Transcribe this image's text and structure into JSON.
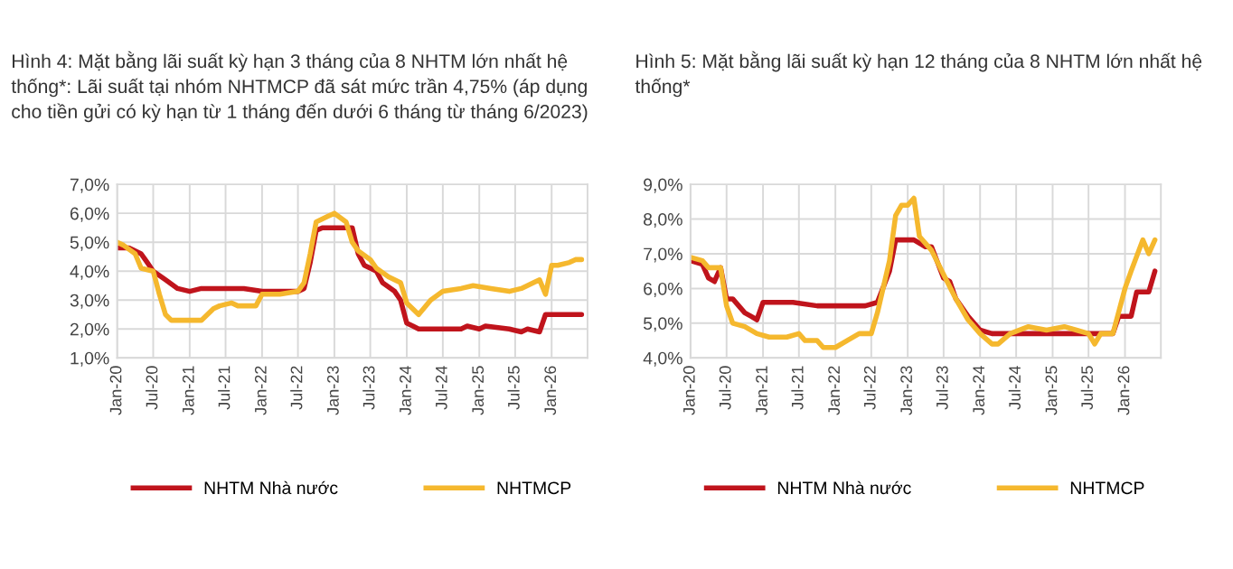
{
  "chart_data": [
    {
      "type": "line",
      "title": "Hình 4: Mặt bằng lãi suất kỳ hạn 3 tháng của 8 NHTM lớn nhất hệ thống*: Lãi suất tại nhóm NHTMCP đã sát mức trần 4,75% (áp dụng cho tiền gửi có kỳ hạn từ 1 tháng đến dưới 6 tháng từ tháng 6/2023)",
      "series": [
        {
          "name": "NHTM Nhà nước",
          "color": "#c0141c",
          "x": [
            "2020-01",
            "2020-03",
            "2020-05",
            "2020-06",
            "2020-07",
            "2020-09",
            "2020-11",
            "2021-01",
            "2021-03",
            "2021-10",
            "2022-01",
            "2022-07",
            "2022-08",
            "2022-09",
            "2022-10",
            "2022-11",
            "2023-04",
            "2023-05",
            "2023-06",
            "2023-08",
            "2023-09",
            "2023-11",
            "2023-12",
            "2024-01",
            "2024-02",
            "2024-03",
            "2024-10",
            "2024-11",
            "2025-01",
            "2025-02",
            "2025-06",
            "2025-08",
            "2025-09",
            "2025-11",
            "2025-12",
            "2026-01",
            "2026-06"
          ],
          "values": [
            4.8,
            4.8,
            4.6,
            4.3,
            4.0,
            3.7,
            3.4,
            3.3,
            3.4,
            3.4,
            3.3,
            3.3,
            3.4,
            4.3,
            5.4,
            5.5,
            5.5,
            4.6,
            4.2,
            4.0,
            3.6,
            3.3,
            3.0,
            2.2,
            2.1,
            2.0,
            2.0,
            2.1,
            2.0,
            2.1,
            2.0,
            1.9,
            2.0,
            1.9,
            2.5,
            2.5,
            2.5
          ]
        },
        {
          "name": "NHTMCP",
          "color": "#f5b82e",
          "x": [
            "2020-01",
            "2020-02",
            "2020-04",
            "2020-05",
            "2020-07",
            "2020-08",
            "2020-09",
            "2020-10",
            "2021-03",
            "2021-05",
            "2021-06",
            "2021-08",
            "2021-09",
            "2021-11",
            "2021-12",
            "2022-01",
            "2022-04",
            "2022-07",
            "2022-08",
            "2022-09",
            "2022-10",
            "2022-12",
            "2023-01",
            "2023-03",
            "2023-04",
            "2023-05",
            "2023-07",
            "2023-08",
            "2023-10",
            "2023-12",
            "2024-01",
            "2024-03",
            "2024-05",
            "2024-07",
            "2024-10",
            "2024-12",
            "2025-03",
            "2025-06",
            "2025-08",
            "2025-10",
            "2025-11",
            "2025-12",
            "2026-01",
            "2026-02",
            "2026-04",
            "2026-05",
            "2026-06"
          ],
          "values": [
            5.0,
            4.9,
            4.6,
            4.1,
            4.0,
            3.2,
            2.5,
            2.3,
            2.3,
            2.7,
            2.8,
            2.9,
            2.8,
            2.8,
            2.8,
            3.2,
            3.2,
            3.3,
            3.6,
            4.6,
            5.7,
            5.9,
            6.0,
            5.7,
            5.0,
            4.7,
            4.4,
            4.1,
            3.8,
            3.6,
            2.9,
            2.5,
            3.0,
            3.3,
            3.4,
            3.5,
            3.4,
            3.3,
            3.4,
            3.6,
            3.7,
            3.2,
            4.2,
            4.2,
            4.3,
            4.4,
            4.4
          ]
        }
      ],
      "xlim": [
        "2020-01",
        "2026-07"
      ],
      "xticks": [
        {
          "value": "2020-01",
          "label": "Jan-20"
        },
        {
          "value": "2020-07",
          "label": "Jul-20"
        },
        {
          "value": "2021-01",
          "label": "Jan-21"
        },
        {
          "value": "2021-07",
          "label": "Jul-21"
        },
        {
          "value": "2022-01",
          "label": "Jan-22"
        },
        {
          "value": "2022-07",
          "label": "Jul-22"
        },
        {
          "value": "2023-01",
          "label": "Jan-23"
        },
        {
          "value": "2023-07",
          "label": "Jul-23"
        },
        {
          "value": "2024-01",
          "label": "Jan-24"
        },
        {
          "value": "2024-07",
          "label": "Jul-24"
        },
        {
          "value": "2025-01",
          "label": "Jan-25"
        },
        {
          "value": "2025-07",
          "label": "Jul-25"
        },
        {
          "value": "2026-01",
          "label": "Jan-26"
        }
      ],
      "ylim": [
        1,
        7
      ],
      "yticks": [
        {
          "value": 1,
          "label": "1,0%"
        },
        {
          "value": 2,
          "label": "2,0%"
        },
        {
          "value": 3,
          "label": "3,0%"
        },
        {
          "value": 4,
          "label": "4,0%"
        },
        {
          "value": 5,
          "label": "5,0%"
        },
        {
          "value": 6,
          "label": "6,0%"
        },
        {
          "value": 7,
          "label": "7,0%"
        }
      ],
      "grid": true,
      "legend": "bottom"
    },
    {
      "type": "line",
      "title": "Hình 5: Mặt bằng lãi suất kỳ hạn 12 tháng của 8 NHTM lớn nhất hệ thống*",
      "series": [
        {
          "name": "NHTM Nhà nước",
          "color": "#c0141c",
          "x": [
            "2020-01",
            "2020-03",
            "2020-04",
            "2020-05",
            "2020-06",
            "2020-07",
            "2020-08",
            "2020-10",
            "2020-11",
            "2020-12",
            "2021-01",
            "2021-06",
            "2021-10",
            "2022-06",
            "2022-08",
            "2022-10",
            "2022-11",
            "2023-02",
            "2023-04",
            "2023-05",
            "2023-07",
            "2023-08",
            "2023-09",
            "2023-11",
            "2024-01",
            "2024-03",
            "2024-04",
            "2025-04",
            "2025-11",
            "2025-12",
            "2026-02",
            "2026-03",
            "2026-05",
            "2026-06"
          ],
          "values": [
            6.8,
            6.7,
            6.3,
            6.2,
            6.6,
            5.7,
            5.7,
            5.3,
            5.2,
            5.1,
            5.6,
            5.6,
            5.5,
            5.5,
            5.6,
            6.5,
            7.4,
            7.4,
            7.2,
            7.2,
            6.3,
            6.2,
            5.7,
            5.2,
            4.8,
            4.7,
            4.7,
            4.7,
            4.7,
            5.2,
            5.2,
            5.9,
            5.9,
            6.5
          ]
        },
        {
          "name": "NHTMCP",
          "color": "#f5b82e",
          "x": [
            "2020-01",
            "2020-03",
            "2020-04",
            "2020-06",
            "2020-07",
            "2020-08",
            "2020-10",
            "2020-12",
            "2021-02",
            "2021-05",
            "2021-07",
            "2021-08",
            "2021-10",
            "2021-11",
            "2022-01",
            "2022-03",
            "2022-05",
            "2022-07",
            "2022-08",
            "2022-10",
            "2022-11",
            "2022-12",
            "2023-01",
            "2023-02",
            "2023-03",
            "2023-05",
            "2023-07",
            "2023-09",
            "2023-11",
            "2024-01",
            "2024-03",
            "2024-04",
            "2024-06",
            "2024-09",
            "2024-12",
            "2025-03",
            "2025-05",
            "2025-07",
            "2025-08",
            "2025-09",
            "2025-11",
            "2026-01",
            "2026-02",
            "2026-04",
            "2026-05",
            "2026-06"
          ],
          "values": [
            6.9,
            6.8,
            6.6,
            6.6,
            5.5,
            5.0,
            4.9,
            4.7,
            4.6,
            4.6,
            4.7,
            4.5,
            4.5,
            4.3,
            4.3,
            4.5,
            4.7,
            4.7,
            5.3,
            6.8,
            8.1,
            8.4,
            8.4,
            8.6,
            7.5,
            7.1,
            6.4,
            5.7,
            5.1,
            4.7,
            4.4,
            4.4,
            4.7,
            4.9,
            4.8,
            4.9,
            4.8,
            4.7,
            4.4,
            4.7,
            4.7,
            6.0,
            6.5,
            7.4,
            7.0,
            7.4
          ]
        }
      ],
      "xlim": [
        "2020-01",
        "2026-07"
      ],
      "xticks": [
        {
          "value": "2020-01",
          "label": "Jan-20"
        },
        {
          "value": "2020-07",
          "label": "Jul-20"
        },
        {
          "value": "2021-01",
          "label": "Jan-21"
        },
        {
          "value": "2021-07",
          "label": "Jul-21"
        },
        {
          "value": "2022-01",
          "label": "Jan-22"
        },
        {
          "value": "2022-07",
          "label": "Jul-22"
        },
        {
          "value": "2023-01",
          "label": "Jan-23"
        },
        {
          "value": "2023-07",
          "label": "Jul-23"
        },
        {
          "value": "2024-01",
          "label": "Jan-24"
        },
        {
          "value": "2024-07",
          "label": "Jul-24"
        },
        {
          "value": "2025-01",
          "label": "Jan-25"
        },
        {
          "value": "2025-07",
          "label": "Jul-25"
        },
        {
          "value": "2026-01",
          "label": "Jan-26"
        }
      ],
      "ylim": [
        4,
        9
      ],
      "yticks": [
        {
          "value": 4,
          "label": "4,0%"
        },
        {
          "value": 5,
          "label": "5,0%"
        },
        {
          "value": 6,
          "label": "6,0%"
        },
        {
          "value": 7,
          "label": "7,0%"
        },
        {
          "value": 8,
          "label": "8,0%"
        },
        {
          "value": 9,
          "label": "9,0%"
        }
      ],
      "grid": true,
      "legend": "bottom"
    }
  ]
}
